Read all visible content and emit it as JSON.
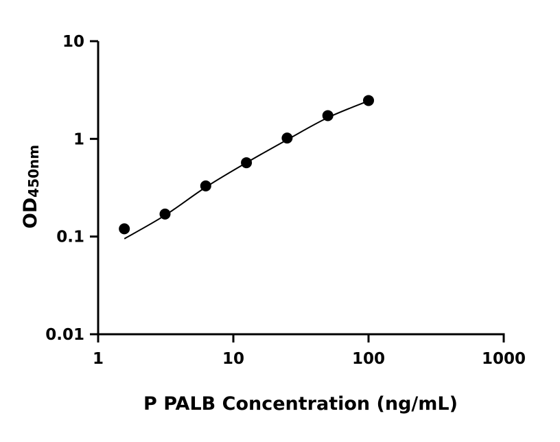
{
  "chart_data": {
    "type": "scatter",
    "title": "",
    "xlabel": "P PALB Concentration (ng/mL)",
    "ylabel_main": "OD",
    "ylabel_sub": "450nm",
    "x_scale": "log",
    "y_scale": "log",
    "xlim": [
      1,
      1000
    ],
    "ylim": [
      0.01,
      10
    ],
    "x_ticks": [
      1,
      10,
      100,
      1000
    ],
    "x_tick_labels": [
      "1",
      "10",
      "100",
      "1000"
    ],
    "y_ticks": [
      0.01,
      0.1,
      1,
      10
    ],
    "y_tick_labels": [
      "0.01",
      "0.1",
      "1",
      "10"
    ],
    "grid": false,
    "legend": "none",
    "series": [
      {
        "x": [
          1.5625,
          3.125,
          6.25,
          12.5,
          25,
          50,
          100
        ],
        "y": [
          0.12,
          0.17,
          0.33,
          0.57,
          1.02,
          1.73,
          2.47
        ],
        "marker": "circle",
        "color": "#000000"
      }
    ],
    "fit_curve": {
      "x": [
        1.5625,
        3.125,
        6.25,
        12.5,
        25,
        50,
        100
      ],
      "y": [
        0.095,
        0.165,
        0.32,
        0.57,
        0.98,
        1.65,
        2.45
      ],
      "color": "#000000"
    }
  }
}
